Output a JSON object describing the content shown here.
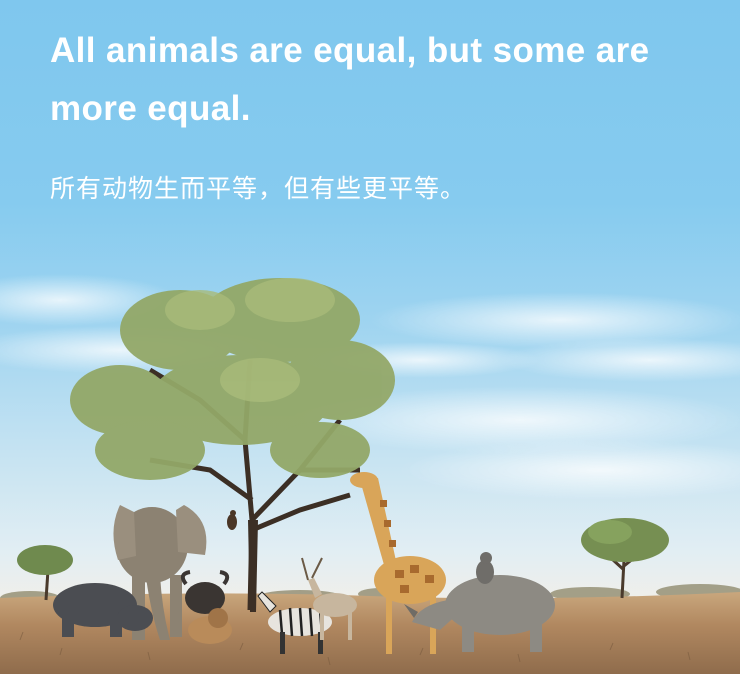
{
  "headline": {
    "english": "All animals are equal, but some are more equal.",
    "chinese": "所有动物生而平等，但有些更平等。"
  },
  "scene": {
    "subjects": [
      "acacia-tree",
      "elephant",
      "buffalo",
      "hippo",
      "lion",
      "zebra",
      "antelope",
      "giraffe",
      "rhino",
      "monkey",
      "bird"
    ],
    "colors": {
      "sky_top": "#7fc7ee",
      "sky_horizon": "#e2eef3",
      "ground": "#a77f59",
      "foliage": "#93a868"
    }
  }
}
